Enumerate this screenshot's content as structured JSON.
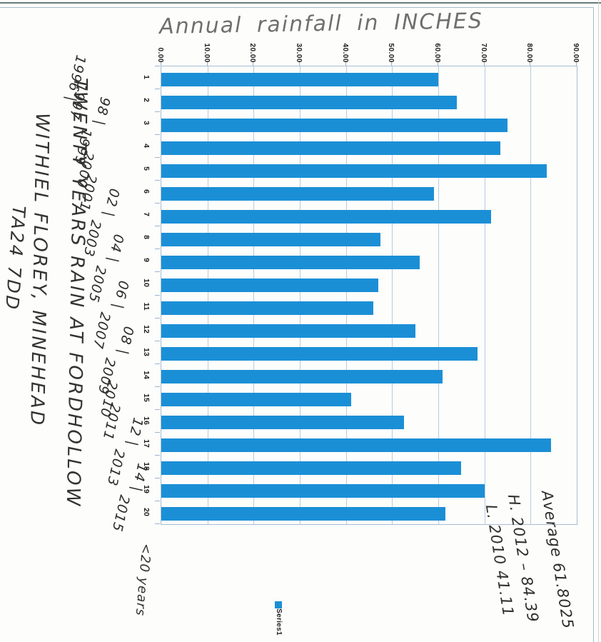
{
  "scan": {
    "handwritten_title": "Annual rainfall in INCHES",
    "location_note_lines": [
      "TWENTY YEARS RAIN AT FORDHOLLOW",
      "WITHIEL FLOREY, MINEHEAD",
      "TA24 7DD"
    ],
    "years_note": "<20 years",
    "stats_lines": [
      "Average 61.8025",
      "H. 2012 – 84.39",
      "L. 2010 41.11"
    ],
    "legend_label": "Series1"
  },
  "chart_data": {
    "type": "bar",
    "title": "Annual rainfall in INCHES",
    "note": "Printed Excel column chart scanned sideways (rotated 90° clockwise), so bars run left-to-right in the scan",
    "categories": [
      "1",
      "2",
      "3",
      "4",
      "5",
      "6",
      "7",
      "8",
      "9",
      "10",
      "11",
      "12",
      "13",
      "14",
      "15",
      "16",
      "17",
      "18",
      "19",
      "20"
    ],
    "years": [
      1996,
      1997,
      1998,
      1999,
      2000,
      2001,
      2002,
      2003,
      2004,
      2005,
      2006,
      2007,
      2008,
      2009,
      2010,
      2011,
      2012,
      2013,
      2014,
      2015
    ],
    "year_labels_handwritten": [
      "1996 |",
      "1997",
      "98 |",
      "1999",
      "2000",
      "2001",
      "02 |",
      "2003",
      "04 |",
      "2005",
      "06 |",
      "2007",
      "08 |",
      "2009",
      "2010",
      "2011",
      "12 |",
      "2013",
      "14 |",
      "2015"
    ],
    "values": [
      60,
      64,
      75,
      73.5,
      83.5,
      59,
      71.5,
      47.5,
      56,
      47,
      46,
      55,
      68.5,
      61,
      41.1,
      52.5,
      84.4,
      65,
      70,
      61.5
    ],
    "value_axis_tick_labels": [
      "0.00",
      "10.00",
      "20.00",
      "30.00",
      "40.00",
      "50.00",
      "60.00",
      "70.00",
      "80.00",
      "90.00"
    ],
    "value_axis_range": [
      0,
      90
    ],
    "unit": "inches",
    "legend": [
      "Series1"
    ],
    "legend_position": "right-of-chart (bottom of scan)",
    "gridlines": true,
    "annotations": {
      "average": "Average 61.8025",
      "high": "H. 2012 – 84.39",
      "low": "L. 2010 41.11",
      "count_note": "<20 years"
    },
    "bar_color": "#1b8fd6"
  },
  "colors": {
    "bar": "#1b8fd6",
    "gridline": "#b7cce0",
    "plot_border": "#a6bdd2",
    "chart_border": "#a5bcc9",
    "pencil": "#6f6f6f",
    "pen": "#2e2e2e",
    "scan_edge": "#4b6561"
  }
}
